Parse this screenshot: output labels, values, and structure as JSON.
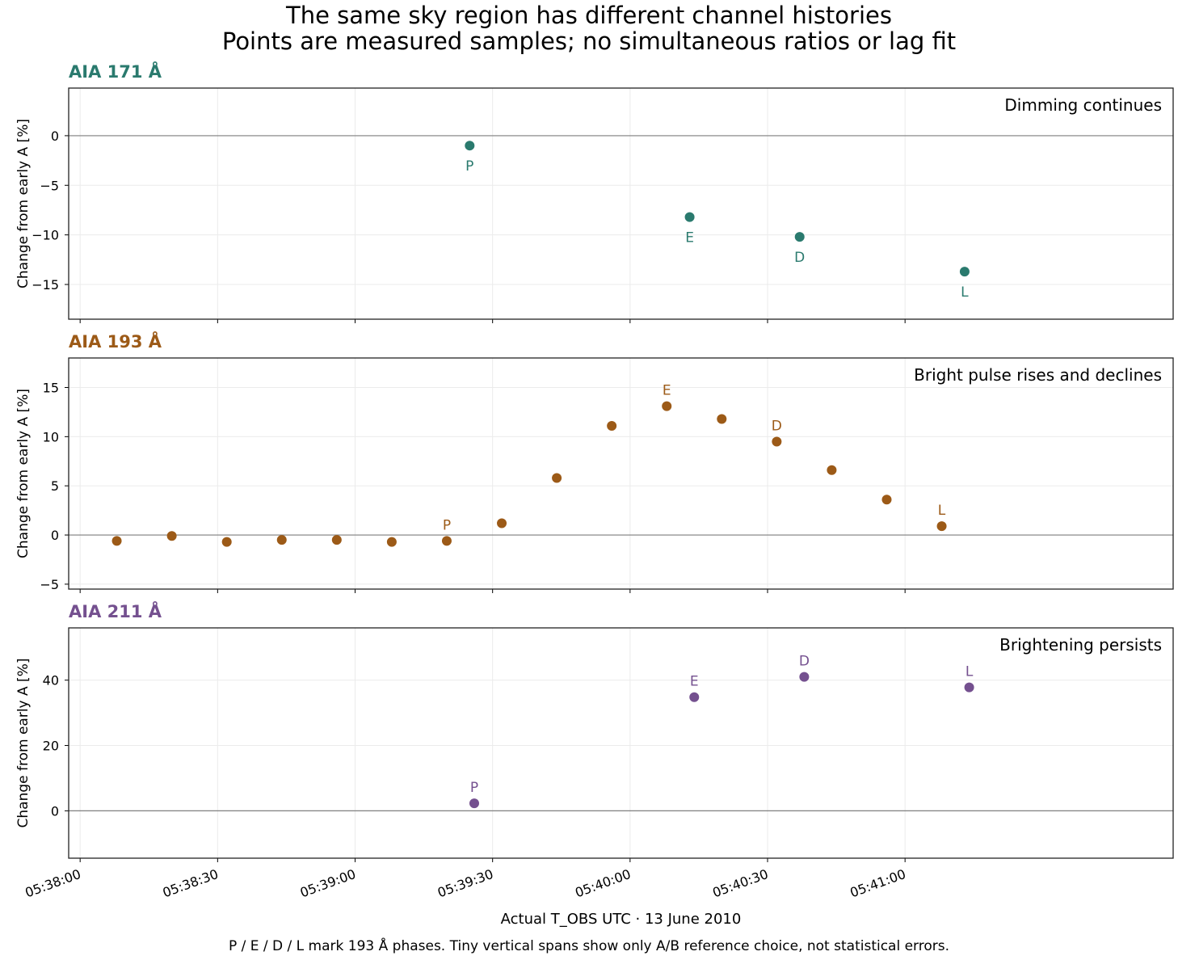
{
  "figure": {
    "title": "The same sky region has different channel histories",
    "subtitle": "Points are measured samples; no simultaneous ratios or lag fit",
    "xlabel": "Actual T_OBS UTC · 13 June 2010",
    "caption": "P / E / D / L mark 193 Å phases. Tiny vertical spans show only A/B reference choice, not statistical errors."
  },
  "chart_data": [
    {
      "type": "scatter",
      "panel_title": "AIA 171 Å",
      "annotation": "Dimming continues",
      "color": "#2a7a6e",
      "ylabel": "Change from early A [%]",
      "ylim": [
        -18.5,
        4.8
      ],
      "yticks": [
        0,
        -5,
        -10,
        -15
      ],
      "xlim": [
        "05:37:57.5",
        "05:41:58.5"
      ],
      "xticks": [
        "05:38:00",
        "05:38:30",
        "05:39:00",
        "05:39:30",
        "05:40:00",
        "05:40:30",
        "05:41:00"
      ],
      "grid": true,
      "points": [
        {
          "x": "05:39:25",
          "y": -1.0,
          "label": "P"
        },
        {
          "x": "05:40:13",
          "y": -8.2,
          "label": "E"
        },
        {
          "x": "05:40:37",
          "y": -10.2,
          "label": "D"
        },
        {
          "x": "05:41:13",
          "y": -13.7,
          "label": "L"
        }
      ]
    },
    {
      "type": "scatter",
      "panel_title": "AIA 193 Å",
      "annotation": "Bright pulse rises and declines",
      "color": "#9c5a17",
      "ylabel": "Change from early A [%]",
      "ylim": [
        -5.5,
        18.0
      ],
      "yticks": [
        15,
        10,
        5,
        0,
        -5
      ],
      "xlim": [
        "05:37:57.5",
        "05:41:58.5"
      ],
      "xticks": [
        "05:38:00",
        "05:38:30",
        "05:39:00",
        "05:39:30",
        "05:40:00",
        "05:40:30",
        "05:41:00"
      ],
      "grid": true,
      "points": [
        {
          "x": "05:38:08",
          "y": -0.6,
          "label": ""
        },
        {
          "x": "05:38:20",
          "y": -0.1,
          "label": ""
        },
        {
          "x": "05:38:32",
          "y": -0.7,
          "label": ""
        },
        {
          "x": "05:38:44",
          "y": -0.5,
          "label": ""
        },
        {
          "x": "05:38:56",
          "y": -0.5,
          "label": ""
        },
        {
          "x": "05:39:08",
          "y": -0.7,
          "label": ""
        },
        {
          "x": "05:39:20",
          "y": -0.6,
          "label": "P"
        },
        {
          "x": "05:39:32",
          "y": 1.2,
          "label": ""
        },
        {
          "x": "05:39:44",
          "y": 5.8,
          "label": ""
        },
        {
          "x": "05:39:56",
          "y": 11.1,
          "label": ""
        },
        {
          "x": "05:40:08",
          "y": 13.1,
          "label": "E"
        },
        {
          "x": "05:40:20",
          "y": 11.8,
          "label": ""
        },
        {
          "x": "05:40:32",
          "y": 9.5,
          "label": "D"
        },
        {
          "x": "05:40:44",
          "y": 6.6,
          "label": ""
        },
        {
          "x": "05:40:56",
          "y": 3.6,
          "label": ""
        },
        {
          "x": "05:41:08",
          "y": 0.9,
          "label": "L"
        }
      ]
    },
    {
      "type": "scatter",
      "panel_title": "AIA 211 Å",
      "annotation": "Brightening persists",
      "color": "#74508f",
      "ylabel": "Change from early A [%]",
      "ylim": [
        -14.5,
        56.0
      ],
      "yticks": [
        40,
        20,
        0
      ],
      "xlim": [
        "05:37:57.5",
        "05:41:58.5"
      ],
      "xticks": [
        "05:38:00",
        "05:38:30",
        "05:39:00",
        "05:39:30",
        "05:40:00",
        "05:40:30",
        "05:41:00"
      ],
      "grid": true,
      "points": [
        {
          "x": "05:39:26",
          "y": 2.3,
          "label": "P"
        },
        {
          "x": "05:40:14",
          "y": 34.8,
          "label": "E"
        },
        {
          "x": "05:40:38",
          "y": 41.0,
          "label": "D"
        },
        {
          "x": "05:41:14",
          "y": 37.8,
          "label": "L"
        }
      ]
    }
  ]
}
